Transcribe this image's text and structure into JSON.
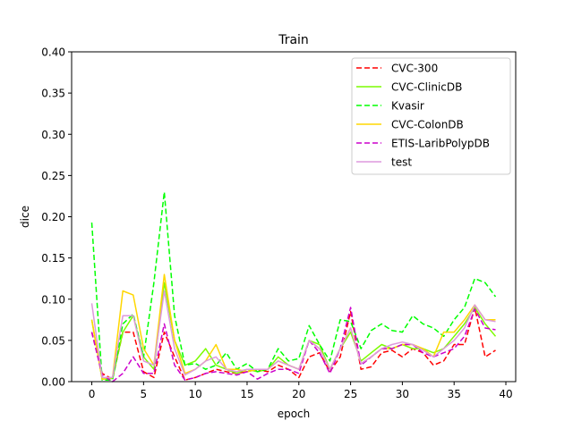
{
  "chart_data": {
    "type": "line",
    "title": "Train",
    "xlabel": "epoch",
    "ylabel": "dice",
    "xlim": [
      -1.95,
      40.95
    ],
    "ylim": [
      0,
      0.4
    ],
    "xticks": [
      0,
      5,
      10,
      15,
      20,
      25,
      30,
      35,
      40
    ],
    "yticks": [
      0.0,
      0.05,
      0.1,
      0.15,
      0.2,
      0.25,
      0.3,
      0.35,
      0.4
    ],
    "grid": false,
    "legend_position": "top-right",
    "x": [
      0,
      1,
      2,
      3,
      4,
      5,
      6,
      7,
      8,
      9,
      10,
      11,
      12,
      13,
      14,
      15,
      16,
      17,
      18,
      19,
      20,
      21,
      22,
      23,
      24,
      25,
      26,
      27,
      28,
      29,
      30,
      31,
      32,
      33,
      34,
      35,
      36,
      37,
      38,
      39
    ],
    "series": [
      {
        "name": "CVC-300",
        "color": "#ff0000",
        "dash": "dashed",
        "values": [
          0.06,
          0.01,
          0.003,
          0.06,
          0.06,
          0.012,
          0.005,
          0.06,
          0.03,
          0.002,
          0.005,
          0.01,
          0.015,
          0.012,
          0.01,
          0.012,
          0.015,
          0.012,
          0.02,
          0.015,
          0.005,
          0.03,
          0.035,
          0.012,
          0.03,
          0.085,
          0.015,
          0.018,
          0.035,
          0.038,
          0.03,
          0.04,
          0.035,
          0.02,
          0.025,
          0.045,
          0.045,
          0.09,
          0.03,
          0.038
        ]
      },
      {
        "name": "CVC-ClinicDB",
        "color": "#7cfc00",
        "dash": "solid",
        "values": [
          0.075,
          0.003,
          0.004,
          0.06,
          0.08,
          0.03,
          0.015,
          0.12,
          0.05,
          0.02,
          0.025,
          0.04,
          0.02,
          0.015,
          0.01,
          0.015,
          0.012,
          0.015,
          0.03,
          0.02,
          0.015,
          0.05,
          0.045,
          0.015,
          0.04,
          0.06,
          0.025,
          0.035,
          0.045,
          0.04,
          0.045,
          0.04,
          0.04,
          0.035,
          0.04,
          0.055,
          0.07,
          0.09,
          0.07,
          0.055
        ]
      },
      {
        "name": "Kvasir",
        "color": "#00ff00",
        "dash": "dashed",
        "values": [
          0.193,
          0.002,
          0.002,
          0.07,
          0.082,
          0.03,
          0.12,
          0.23,
          0.08,
          0.02,
          0.022,
          0.015,
          0.02,
          0.035,
          0.015,
          0.022,
          0.012,
          0.015,
          0.04,
          0.025,
          0.028,
          0.068,
          0.045,
          0.025,
          0.075,
          0.073,
          0.04,
          0.062,
          0.07,
          0.062,
          0.06,
          0.08,
          0.07,
          0.065,
          0.055,
          0.075,
          0.09,
          0.125,
          0.12,
          0.103
        ]
      },
      {
        "name": "CVC-ColonDB",
        "color": "#ffd700",
        "dash": "solid",
        "values": [
          0.075,
          0.003,
          0.005,
          0.11,
          0.105,
          0.04,
          0.02,
          0.13,
          0.05,
          0.01,
          0.015,
          0.025,
          0.045,
          0.015,
          0.015,
          0.012,
          0.015,
          0.015,
          0.025,
          0.02,
          0.015,
          0.05,
          0.04,
          0.015,
          0.04,
          0.065,
          0.022,
          0.03,
          0.04,
          0.04,
          0.045,
          0.045,
          0.04,
          0.03,
          0.06,
          0.06,
          0.075,
          0.093,
          0.075,
          0.075
        ]
      },
      {
        "name": "ETIS-LaribPolypDB",
        "color": "#cc00cc",
        "dash": "dashed",
        "values": [
          0.06,
          0.008,
          0.0,
          0.01,
          0.03,
          0.01,
          0.01,
          0.07,
          0.02,
          0.002,
          0.005,
          0.01,
          0.012,
          0.01,
          0.008,
          0.012,
          0.003,
          0.01,
          0.015,
          0.015,
          0.01,
          0.05,
          0.035,
          0.01,
          0.04,
          0.09,
          0.02,
          0.03,
          0.04,
          0.04,
          0.045,
          0.045,
          0.035,
          0.03,
          0.035,
          0.04,
          0.055,
          0.088,
          0.065,
          0.063
        ]
      },
      {
        "name": "test",
        "color": "#dd99dd",
        "dash": "solid",
        "values": [
          0.095,
          0.005,
          0.005,
          0.08,
          0.08,
          0.025,
          0.02,
          0.11,
          0.04,
          0.008,
          0.015,
          0.025,
          0.03,
          0.015,
          0.012,
          0.015,
          0.015,
          0.015,
          0.025,
          0.02,
          0.015,
          0.05,
          0.04,
          0.015,
          0.04,
          0.065,
          0.022,
          0.03,
          0.04,
          0.045,
          0.048,
          0.045,
          0.038,
          0.03,
          0.04,
          0.05,
          0.065,
          0.093,
          0.075,
          0.073
        ]
      }
    ]
  }
}
